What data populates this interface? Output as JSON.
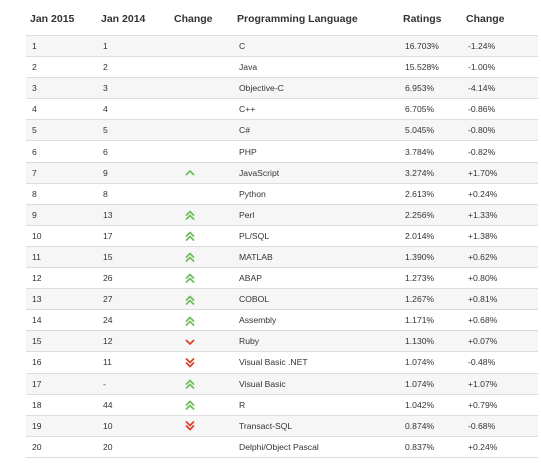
{
  "table": {
    "headers": {
      "jan2015": "Jan 2015",
      "jan2014": "Jan 2014",
      "change": "Change",
      "language": "Programming Language",
      "ratings": "Ratings",
      "change_pct": "Change"
    },
    "colors": {
      "up": "#6fbf5f",
      "down": "#d9442c"
    },
    "rows": [
      {
        "rank2015": "1",
        "rank2014": "1",
        "trend": "",
        "language": "C",
        "rating": "16.703%",
        "change": "-1.24%"
      },
      {
        "rank2015": "2",
        "rank2014": "2",
        "trend": "",
        "language": "Java",
        "rating": "15.528%",
        "change": "-1.00%"
      },
      {
        "rank2015": "3",
        "rank2014": "3",
        "trend": "",
        "language": "Objective-C",
        "rating": "6.953%",
        "change": "-4.14%"
      },
      {
        "rank2015": "4",
        "rank2014": "4",
        "trend": "",
        "language": "C++",
        "rating": "6.705%",
        "change": "-0.86%"
      },
      {
        "rank2015": "5",
        "rank2014": "5",
        "trend": "",
        "language": "C#",
        "rating": "5.045%",
        "change": "-0.80%"
      },
      {
        "rank2015": "6",
        "rank2014": "6",
        "trend": "",
        "language": "PHP",
        "rating": "3.784%",
        "change": "-0.82%"
      },
      {
        "rank2015": "7",
        "rank2014": "9",
        "trend": "up",
        "language": "JavaScript",
        "rating": "3.274%",
        "change": "+1.70%"
      },
      {
        "rank2015": "8",
        "rank2014": "8",
        "trend": "",
        "language": "Python",
        "rating": "2.613%",
        "change": "+0.24%"
      },
      {
        "rank2015": "9",
        "rank2014": "13",
        "trend": "up2",
        "language": "Perl",
        "rating": "2.256%",
        "change": "+1.33%"
      },
      {
        "rank2015": "10",
        "rank2014": "17",
        "trend": "up2",
        "language": "PL/SQL",
        "rating": "2.014%",
        "change": "+1.38%"
      },
      {
        "rank2015": "11",
        "rank2014": "15",
        "trend": "up2",
        "language": "MATLAB",
        "rating": "1.390%",
        "change": "+0.62%"
      },
      {
        "rank2015": "12",
        "rank2014": "26",
        "trend": "up2",
        "language": "ABAP",
        "rating": "1.273%",
        "change": "+0.80%"
      },
      {
        "rank2015": "13",
        "rank2014": "27",
        "trend": "up2",
        "language": "COBOL",
        "rating": "1.267%",
        "change": "+0.81%"
      },
      {
        "rank2015": "14",
        "rank2014": "24",
        "trend": "up2",
        "language": "Assembly",
        "rating": "1.171%",
        "change": "+0.68%"
      },
      {
        "rank2015": "15",
        "rank2014": "12",
        "trend": "down",
        "language": "Ruby",
        "rating": "1.130%",
        "change": "+0.07%"
      },
      {
        "rank2015": "16",
        "rank2014": "11",
        "trend": "down2",
        "language": "Visual Basic .NET",
        "rating": "1.074%",
        "change": "-0.48%"
      },
      {
        "rank2015": "17",
        "rank2014": "-",
        "trend": "up2",
        "language": "Visual Basic",
        "rating": "1.074%",
        "change": "+1.07%"
      },
      {
        "rank2015": "18",
        "rank2014": "44",
        "trend": "up2",
        "language": "R",
        "rating": "1.042%",
        "change": "+0.79%"
      },
      {
        "rank2015": "19",
        "rank2014": "10",
        "trend": "down2",
        "language": "Transact-SQL",
        "rating": "0.874%",
        "change": "-0.68%"
      },
      {
        "rank2015": "20",
        "rank2014": "20",
        "trend": "",
        "language": "Delphi/Object Pascal",
        "rating": "0.837%",
        "change": "+0.24%"
      }
    ]
  }
}
